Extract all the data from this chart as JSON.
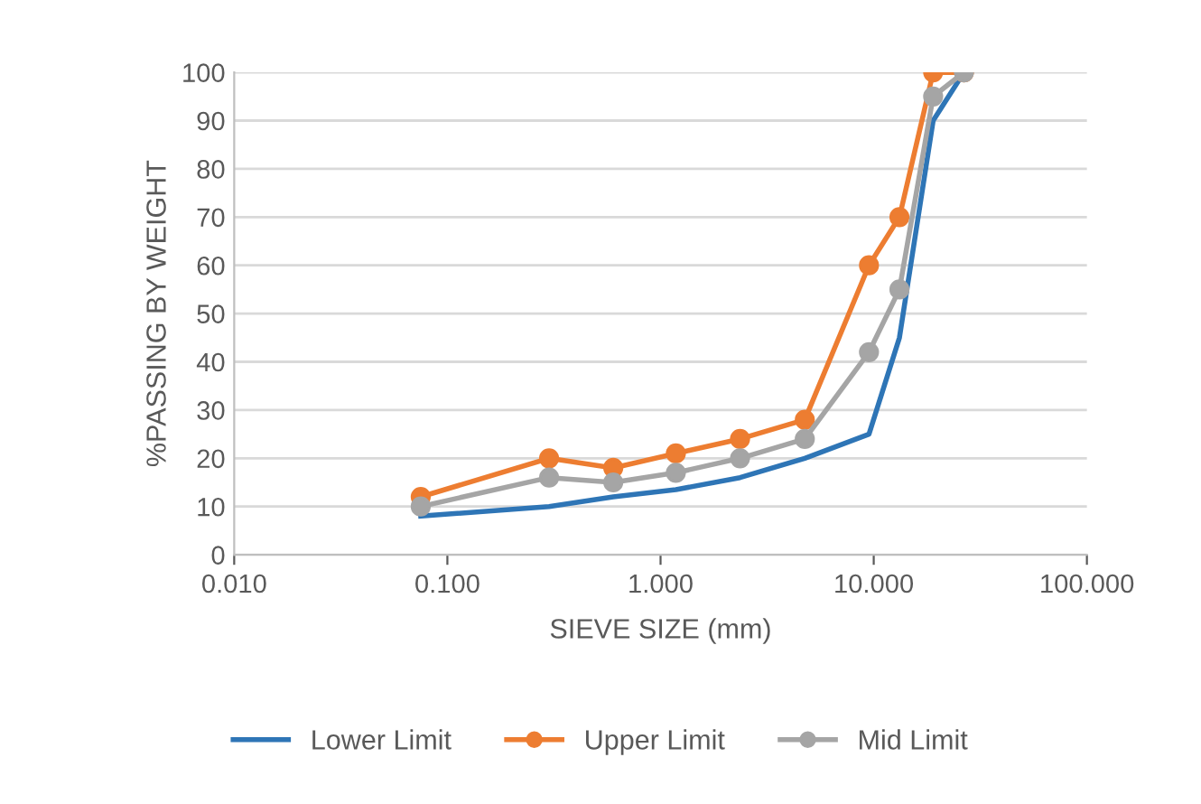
{
  "chart_data": {
    "type": "line",
    "xlabel": "SIEVE SIZE (mm)",
    "ylabel": "%PASSING BY WEIGHT",
    "log": "x",
    "grid": "y",
    "legend": "bottom",
    "x": [
      0.075,
      0.3,
      0.6,
      1.18,
      2.36,
      4.75,
      9.5,
      13.2,
      19,
      26.5
    ],
    "xlim": [
      0.01,
      100
    ],
    "xticks": [
      {
        "value": 0.01,
        "label": "0.010"
      },
      {
        "value": 0.1,
        "label": "0.100"
      },
      {
        "value": 1,
        "label": "1.000"
      },
      {
        "value": 10,
        "label": "10.000"
      },
      {
        "value": 100,
        "label": "100.000"
      }
    ],
    "ylim": [
      0,
      100
    ],
    "yticks": [
      0,
      10,
      20,
      30,
      40,
      50,
      60,
      70,
      80,
      90,
      100
    ],
    "series": [
      {
        "name": "Lower Limit",
        "color": "#2e75b6",
        "marker": "none",
        "values": [
          8,
          10,
          12,
          13.5,
          16,
          20,
          25,
          45,
          90,
          100
        ]
      },
      {
        "name": "Upper Limit",
        "color": "#ed7d31",
        "marker": "circle",
        "values": [
          12,
          20,
          18,
          21,
          24,
          28,
          60,
          70,
          100,
          100
        ]
      },
      {
        "name": "Mid Limit",
        "color": "#a5a5a5",
        "marker": "circle",
        "values": [
          10,
          16,
          15,
          17,
          20,
          24,
          42,
          55,
          95,
          100
        ]
      }
    ]
  }
}
